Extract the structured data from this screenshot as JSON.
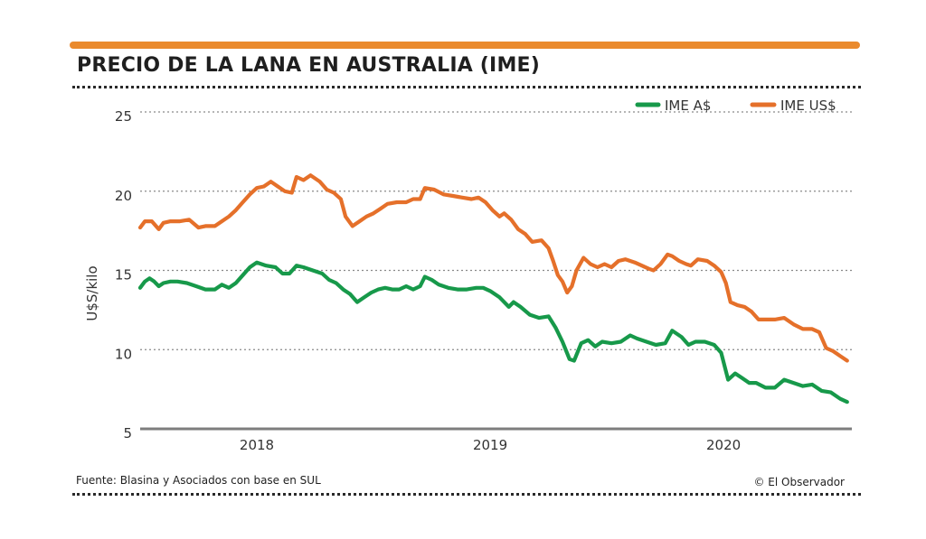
{
  "header": {
    "title": "PRECIO DE LA LANA EN AUSTRALIA (IME)"
  },
  "footer": {
    "source": "Fuente: Blasina y Asociados con base en SUL",
    "credit": "© El Observador"
  },
  "colors": {
    "accent": "#ea8a2d",
    "green": "#17994a",
    "orange": "#e5702a",
    "grid": "#8a8a8a",
    "axis": "#7d7d7d"
  },
  "chart_data": {
    "type": "line",
    "title": "PRECIO DE LA LANA EN AUSTRALIA (IME)",
    "ylabel": "U$S/kilo",
    "xlabel": "",
    "ylim": [
      5,
      25
    ],
    "yticks": [
      "25",
      "20",
      "15",
      "10",
      "5"
    ],
    "xlim": [
      2017.5,
      2020.55
    ],
    "xticks": [
      {
        "label": "2018",
        "x": 2018.0
      },
      {
        "label": "2019",
        "x": 2019.0
      },
      {
        "label": "2020",
        "x": 2020.0
      }
    ],
    "grid": "horizontal-dotted",
    "legend": "top-right",
    "series": [
      {
        "name": "IME A$",
        "color": "#17994a",
        "points": [
          [
            2017.5,
            13.9
          ],
          [
            2017.52,
            14.3
          ],
          [
            2017.54,
            14.5
          ],
          [
            2017.56,
            14.3
          ],
          [
            2017.58,
            14.0
          ],
          [
            2017.6,
            14.2
          ],
          [
            2017.63,
            14.3
          ],
          [
            2017.66,
            14.3
          ],
          [
            2017.7,
            14.2
          ],
          [
            2017.74,
            14.0
          ],
          [
            2017.78,
            13.8
          ],
          [
            2017.82,
            13.8
          ],
          [
            2017.85,
            14.1
          ],
          [
            2017.88,
            13.9
          ],
          [
            2017.91,
            14.2
          ],
          [
            2017.94,
            14.7
          ],
          [
            2017.97,
            15.2
          ],
          [
            2018.0,
            15.5
          ],
          [
            2018.04,
            15.3
          ],
          [
            2018.08,
            15.2
          ],
          [
            2018.11,
            14.8
          ],
          [
            2018.14,
            14.8
          ],
          [
            2018.17,
            15.3
          ],
          [
            2018.2,
            15.2
          ],
          [
            2018.24,
            15.0
          ],
          [
            2018.28,
            14.8
          ],
          [
            2018.31,
            14.4
          ],
          [
            2018.34,
            14.2
          ],
          [
            2018.37,
            13.8
          ],
          [
            2018.4,
            13.5
          ],
          [
            2018.43,
            13.0
          ],
          [
            2018.46,
            13.3
          ],
          [
            2018.49,
            13.6
          ],
          [
            2018.52,
            13.8
          ],
          [
            2018.55,
            13.9
          ],
          [
            2018.58,
            13.8
          ],
          [
            2018.61,
            13.8
          ],
          [
            2018.64,
            14.0
          ],
          [
            2018.67,
            13.8
          ],
          [
            2018.7,
            14.0
          ],
          [
            2018.72,
            14.6
          ],
          [
            2018.75,
            14.4
          ],
          [
            2018.78,
            14.1
          ],
          [
            2018.82,
            13.9
          ],
          [
            2018.86,
            13.8
          ],
          [
            2018.9,
            13.8
          ],
          [
            2018.94,
            13.9
          ],
          [
            2018.97,
            13.9
          ],
          [
            2019.0,
            13.7
          ],
          [
            2019.04,
            13.3
          ],
          [
            2019.08,
            12.7
          ],
          [
            2019.1,
            13.0
          ],
          [
            2019.13,
            12.7
          ],
          [
            2019.17,
            12.2
          ],
          [
            2019.21,
            12.0
          ],
          [
            2019.25,
            12.1
          ],
          [
            2019.28,
            11.4
          ],
          [
            2019.31,
            10.5
          ],
          [
            2019.34,
            9.4
          ],
          [
            2019.36,
            9.3
          ],
          [
            2019.39,
            10.4
          ],
          [
            2019.42,
            10.6
          ],
          [
            2019.45,
            10.2
          ],
          [
            2019.48,
            10.5
          ],
          [
            2019.52,
            10.4
          ],
          [
            2019.56,
            10.5
          ],
          [
            2019.6,
            10.9
          ],
          [
            2019.63,
            10.7
          ],
          [
            2019.67,
            10.5
          ],
          [
            2019.71,
            10.3
          ],
          [
            2019.75,
            10.4
          ],
          [
            2019.78,
            11.2
          ],
          [
            2019.82,
            10.8
          ],
          [
            2019.85,
            10.3
          ],
          [
            2019.88,
            10.5
          ],
          [
            2019.92,
            10.5
          ],
          [
            2019.96,
            10.3
          ],
          [
            2019.99,
            9.8
          ],
          [
            2020.02,
            8.1
          ],
          [
            2020.05,
            8.5
          ],
          [
            2020.08,
            8.2
          ],
          [
            2020.11,
            7.9
          ],
          [
            2020.14,
            7.9
          ],
          [
            2020.18,
            7.6
          ],
          [
            2020.22,
            7.6
          ],
          [
            2020.26,
            8.1
          ],
          [
            2020.3,
            7.9
          ],
          [
            2020.34,
            7.7
          ],
          [
            2020.38,
            7.8
          ],
          [
            2020.42,
            7.4
          ],
          [
            2020.46,
            7.3
          ],
          [
            2020.5,
            6.9
          ],
          [
            2020.53,
            6.7
          ]
        ]
      },
      {
        "name": "IME US$",
        "color": "#e5702a",
        "points": [
          [
            2017.5,
            17.7
          ],
          [
            2017.52,
            18.1
          ],
          [
            2017.55,
            18.1
          ],
          [
            2017.58,
            17.6
          ],
          [
            2017.6,
            18.0
          ],
          [
            2017.63,
            18.1
          ],
          [
            2017.67,
            18.1
          ],
          [
            2017.71,
            18.2
          ],
          [
            2017.75,
            17.7
          ],
          [
            2017.78,
            17.8
          ],
          [
            2017.82,
            17.8
          ],
          [
            2017.85,
            18.1
          ],
          [
            2017.88,
            18.4
          ],
          [
            2017.91,
            18.8
          ],
          [
            2017.94,
            19.3
          ],
          [
            2017.97,
            19.8
          ],
          [
            2018.0,
            20.2
          ],
          [
            2018.03,
            20.3
          ],
          [
            2018.06,
            20.6
          ],
          [
            2018.09,
            20.3
          ],
          [
            2018.12,
            20.0
          ],
          [
            2018.15,
            19.9
          ],
          [
            2018.17,
            20.9
          ],
          [
            2018.2,
            20.7
          ],
          [
            2018.23,
            21.0
          ],
          [
            2018.27,
            20.6
          ],
          [
            2018.3,
            20.1
          ],
          [
            2018.33,
            19.9
          ],
          [
            2018.36,
            19.5
          ],
          [
            2018.38,
            18.4
          ],
          [
            2018.41,
            17.8
          ],
          [
            2018.44,
            18.1
          ],
          [
            2018.47,
            18.4
          ],
          [
            2018.5,
            18.6
          ],
          [
            2018.53,
            18.9
          ],
          [
            2018.56,
            19.2
          ],
          [
            2018.6,
            19.3
          ],
          [
            2018.64,
            19.3
          ],
          [
            2018.67,
            19.5
          ],
          [
            2018.7,
            19.5
          ],
          [
            2018.72,
            20.2
          ],
          [
            2018.76,
            20.1
          ],
          [
            2018.8,
            19.8
          ],
          [
            2018.84,
            19.7
          ],
          [
            2018.88,
            19.6
          ],
          [
            2018.92,
            19.5
          ],
          [
            2018.95,
            19.6
          ],
          [
            2018.98,
            19.3
          ],
          [
            2019.01,
            18.8
          ],
          [
            2019.04,
            18.4
          ],
          [
            2019.06,
            18.6
          ],
          [
            2019.09,
            18.2
          ],
          [
            2019.12,
            17.6
          ],
          [
            2019.15,
            17.3
          ],
          [
            2019.18,
            16.8
          ],
          [
            2019.22,
            16.9
          ],
          [
            2019.25,
            16.4
          ],
          [
            2019.27,
            15.6
          ],
          [
            2019.29,
            14.7
          ],
          [
            2019.31,
            14.3
          ],
          [
            2019.33,
            13.6
          ],
          [
            2019.35,
            14.0
          ],
          [
            2019.37,
            15.0
          ],
          [
            2019.4,
            15.8
          ],
          [
            2019.43,
            15.4
          ],
          [
            2019.46,
            15.2
          ],
          [
            2019.49,
            15.4
          ],
          [
            2019.52,
            15.2
          ],
          [
            2019.55,
            15.6
          ],
          [
            2019.58,
            15.7
          ],
          [
            2019.62,
            15.5
          ],
          [
            2019.65,
            15.3
          ],
          [
            2019.68,
            15.1
          ],
          [
            2019.7,
            15.0
          ],
          [
            2019.73,
            15.4
          ],
          [
            2019.76,
            16.0
          ],
          [
            2019.78,
            15.9
          ],
          [
            2019.81,
            15.6
          ],
          [
            2019.84,
            15.4
          ],
          [
            2019.86,
            15.3
          ],
          [
            2019.89,
            15.7
          ],
          [
            2019.93,
            15.6
          ],
          [
            2019.96,
            15.3
          ],
          [
            2019.99,
            14.9
          ],
          [
            2020.01,
            14.2
          ],
          [
            2020.03,
            13.0
          ],
          [
            2020.06,
            12.8
          ],
          [
            2020.09,
            12.7
          ],
          [
            2020.12,
            12.4
          ],
          [
            2020.15,
            11.9
          ],
          [
            2020.18,
            11.9
          ],
          [
            2020.22,
            11.9
          ],
          [
            2020.26,
            12.0
          ],
          [
            2020.3,
            11.6
          ],
          [
            2020.34,
            11.3
          ],
          [
            2020.38,
            11.3
          ],
          [
            2020.41,
            11.1
          ],
          [
            2020.44,
            10.1
          ],
          [
            2020.47,
            9.9
          ],
          [
            2020.5,
            9.6
          ],
          [
            2020.53,
            9.3
          ]
        ]
      }
    ]
  }
}
